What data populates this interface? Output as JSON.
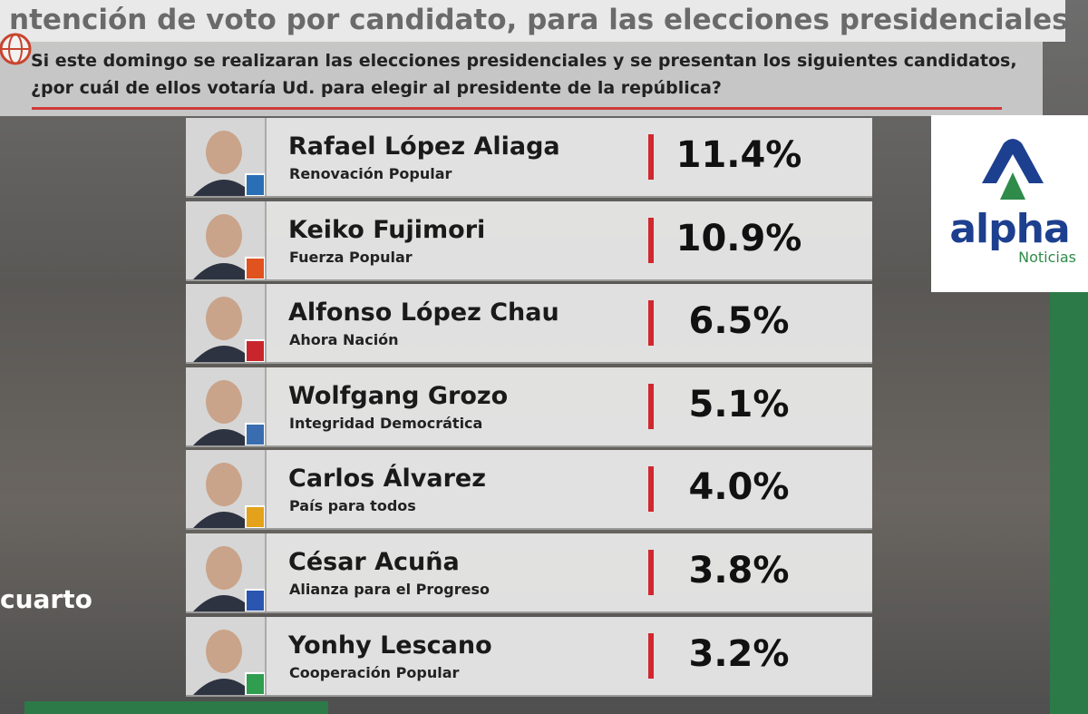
{
  "header": {
    "title": "ntención de voto por candidato, para las elecciones presidenciales",
    "question": [
      "Si este domingo se realizaran las elecciones presidenciales y se presentan los siguientes candidatos,",
      "¿por cuál de ellos votaría Ud. para elegir al presidente de la república?"
    ]
  },
  "rows": [
    {
      "name": "Rafael López Aliaga",
      "party": "Renovación Popular",
      "value": "11.4%"
    },
    {
      "name": "Keiko Fujimori",
      "party": "Fuerza Popular",
      "value": "10.9%"
    },
    {
      "name": "Alfonso López Chau",
      "party": "Ahora Nación",
      "value": "6.5%"
    },
    {
      "name": "Wolfgang Grozo",
      "party": "Integridad Democrática",
      "value": "5.1%"
    },
    {
      "name": "Carlos Álvarez",
      "party": "País para todos",
      "value": "4.0%"
    },
    {
      "name": "César Acuña",
      "party": "Alianza para el Progreso",
      "value": "3.8%"
    },
    {
      "name": "Yonhy Lescano",
      "party": "Cooperación Popular",
      "value": "3.2%"
    }
  ],
  "logo": {
    "brand": "alpha",
    "subtitle": "Noticias"
  },
  "watermark": "cuarto"
}
